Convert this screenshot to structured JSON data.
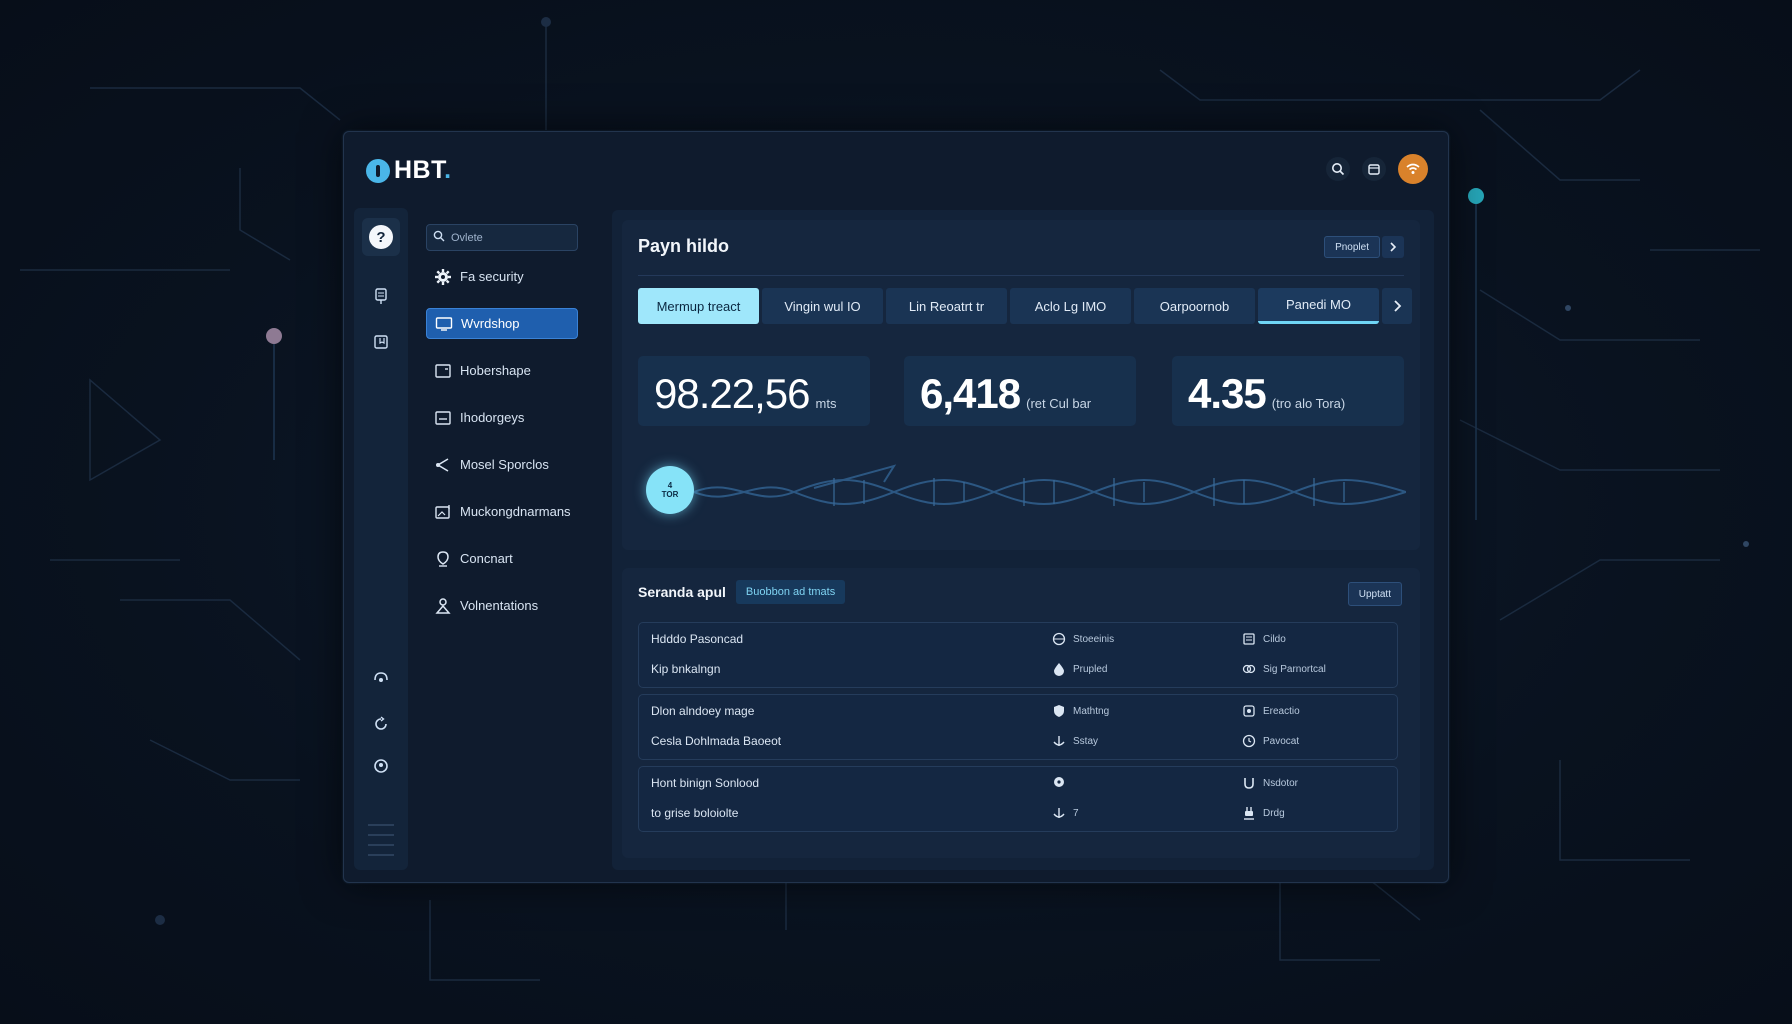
{
  "app": {
    "logo_text": "HBT",
    "logo_dot": "."
  },
  "colors": {
    "accent": "#4ab6e8",
    "highlight": "#9fe7fb",
    "avatar": "#d9822b",
    "panel": "#15263e"
  },
  "top_icons": [
    "search-icon",
    "calendar-icon",
    "wifi-icon"
  ],
  "rail_icons": [
    "help-icon",
    "server-icon",
    "bookmark-icon",
    "headset-icon",
    "refresh-icon",
    "support-icon"
  ],
  "sidebar": {
    "search_placeholder": "Ovlete",
    "items": [
      {
        "label": "Fa security",
        "icon": "gear-icon",
        "active": false
      },
      {
        "label": "Wvrdshop",
        "icon": "monitor-icon",
        "active": true
      },
      {
        "label": "Hobershape",
        "icon": "window-icon",
        "active": false
      },
      {
        "label": "Ihodorgeys",
        "icon": "panel-icon",
        "active": false
      },
      {
        "label": "Mosel Sporclos",
        "icon": "share-icon",
        "active": false
      },
      {
        "label": "Muckongdnarmans",
        "icon": "image-icon",
        "active": false
      },
      {
        "label": "Concnart",
        "icon": "location-icon",
        "active": false
      },
      {
        "label": "Volnentations",
        "icon": "user-icon",
        "active": false
      }
    ]
  },
  "main": {
    "title": "Payn hildo",
    "header_button": "Pnoplet",
    "tabs": [
      {
        "label": "Mermup treact",
        "state": "highlight"
      },
      {
        "label": "Vingin wul IO",
        "state": "normal"
      },
      {
        "label": "Lin Reoatrt tr",
        "state": "normal"
      },
      {
        "label": "Aclo Lg IMO",
        "state": "normal"
      },
      {
        "label": "Oarpoornob",
        "state": "normal"
      },
      {
        "label": "Panedi MO",
        "state": "selected"
      }
    ],
    "stats": [
      {
        "value": "98.22,56",
        "unit": "mts"
      },
      {
        "value": "6,418",
        "unit": "(ret Cul bar"
      },
      {
        "value": "4.35",
        "unit": "(tro alo Tora)"
      }
    ],
    "wave_badge": {
      "line1": "4",
      "line2": "TOR"
    }
  },
  "section": {
    "title": "Seranda apul",
    "badge": "Buobbon ad tmats",
    "button": "Upptatt",
    "groups": [
      {
        "rows": [
          {
            "name": "Hdddo Pasoncad",
            "a_icon": "globe-icon",
            "a_label": "Stoeeinis",
            "b_icon": "doc-icon",
            "b_label": "Cildo"
          },
          {
            "name": "Kip bnkalngn",
            "a_icon": "drop-icon",
            "a_label": "Prupled",
            "b_icon": "link-icon",
            "b_label": "Sig Parnortcal"
          }
        ]
      },
      {
        "rows": [
          {
            "name": "Dlon alndoey mage",
            "a_icon": "shield-icon",
            "a_label": "Mathtng",
            "b_icon": "tag-icon",
            "b_label": "Ereactio"
          },
          {
            "name": "Cesla Dohlmada Baoeot",
            "a_icon": "anchor-icon",
            "a_label": "Sstay",
            "b_icon": "clock-icon",
            "b_label": "Pavocat"
          }
        ]
      },
      {
        "rows": [
          {
            "name": "Hont binign Sonlood",
            "a_icon": "pin-icon",
            "a_label": "",
            "b_icon": "magnet-icon",
            "b_label": "Nsdotor"
          },
          {
            "name": "to grise boloiolte",
            "a_icon": "anchor-icon",
            "a_label": "7",
            "b_icon": "plug-icon",
            "b_label": "Drdg"
          }
        ]
      }
    ]
  }
}
